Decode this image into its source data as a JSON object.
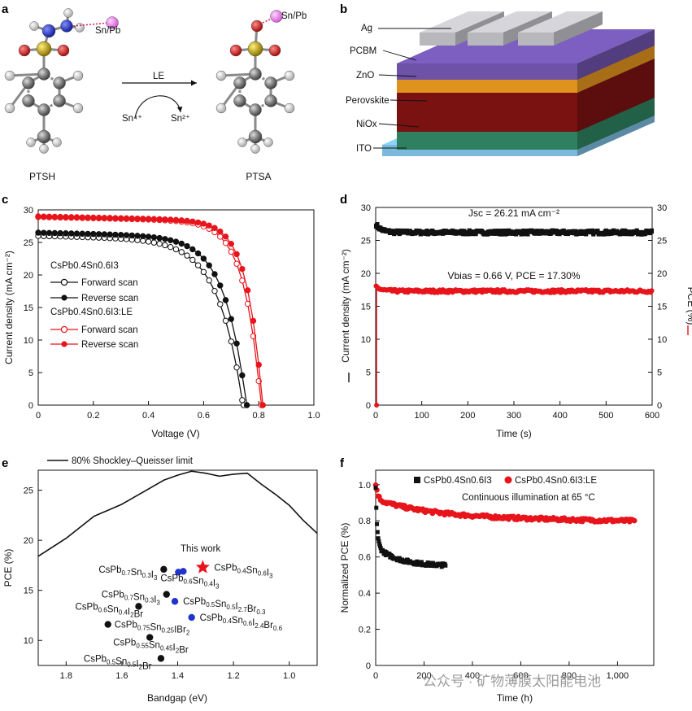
{
  "panels": {
    "a": "a",
    "b": "b",
    "c": "c",
    "d": "d",
    "e": "e",
    "f": "f"
  },
  "panel_a": {
    "left_label": "PTSH",
    "right_label": "PTSA",
    "left_site": "Sn/Pb",
    "right_site": "Sn/Pb",
    "arrow_label": "LE",
    "redox_from": "Sn⁴⁺",
    "redox_to": "Sn²⁺",
    "colors": {
      "carbon": "#7a7a7a",
      "hydrogen": "#e4e4e4",
      "nitrogen": "#2233bb",
      "oxygen": "#d11f1f",
      "sulfur": "#c9a800",
      "metal": "#ee88ee",
      "bond_dash": "#d4145a"
    }
  },
  "panel_b": {
    "layers": [
      "Ag",
      "PCBM",
      "ZnO",
      "Perovskite",
      "NiOx",
      "ITO"
    ],
    "colors": {
      "Ag": "#b8b8bc",
      "PCBM": "#6d52a8",
      "ZnO": "#e0921e",
      "Perovskite": "#7a1212",
      "NiOx": "#2f8060",
      "ITO": "#7ab8dc"
    }
  },
  "chart_data": [
    {
      "id": "c",
      "type": "line",
      "xlabel": "Voltage (V)",
      "ylabel": "Current density (mA cm⁻²)",
      "xlim": [
        0,
        1.0
      ],
      "ylim": [
        0,
        30
      ],
      "xticks": [
        "0",
        "0.2",
        "0.4",
        "0.6",
        "0.8",
        "1.0"
      ],
      "yticks": [
        "0",
        "5",
        "10",
        "15",
        "20",
        "25",
        "30"
      ],
      "legend": {
        "group1": "CsPb0.4Sn0.6I3",
        "group2": "CsPb0.4Sn0.6I3:LE",
        "entries": [
          "Forward scan",
          "Reverse scan",
          "Forward scan",
          "Reverse scan"
        ]
      },
      "series": [
        {
          "name": "Forward scan",
          "group": "CsPb0.4Sn0.6I3",
          "color": "#111111",
          "filled": false,
          "voc": 0.745,
          "jsc": 26.0,
          "n": 0.16
        },
        {
          "name": "Reverse scan",
          "group": "CsPb0.4Sn0.6I3",
          "color": "#111111",
          "filled": true,
          "voc": 0.757,
          "jsc": 26.5,
          "n": 0.14
        },
        {
          "name": "Forward scan",
          "group": "CsPb0.4Sn0.6I3:LE",
          "color": "#e8141c",
          "filled": false,
          "voc": 0.81,
          "jsc": 28.9,
          "n": 0.11
        },
        {
          "name": "Reverse scan",
          "group": "CsPb0.4Sn0.6I3:LE",
          "color": "#e8141c",
          "filled": true,
          "voc": 0.815,
          "jsc": 29.0,
          "n": 0.1
        }
      ]
    },
    {
      "id": "d",
      "type": "line",
      "xlabel": "Time (s)",
      "ylabel_left": "Current density (mA cm⁻²)",
      "ylabel_right": "PCE (%)",
      "xlim": [
        0,
        600
      ],
      "ylim": [
        0,
        30
      ],
      "xticks": [
        "0",
        "100",
        "200",
        "300",
        "400",
        "500",
        "600"
      ],
      "yticks": [
        "0",
        "5",
        "10",
        "15",
        "20",
        "25",
        "30"
      ],
      "annotation_top": "Jsc = 26.21 mA cm⁻²",
      "annotation_mid": "Vbias = 0.66 V, PCE = 17.30%",
      "series": [
        {
          "name": "Current density",
          "color": "#111111",
          "steady": 26.21,
          "start": 27.5
        },
        {
          "name": "PCE",
          "color": "#e8141c",
          "steady": 17.3,
          "start": 18.0
        }
      ]
    },
    {
      "id": "e",
      "type": "scatter",
      "xlabel": "Bandgap (eV)",
      "ylabel": "PCE (%)",
      "xlim": [
        1.9,
        0.9
      ],
      "ylim": [
        7.5,
        27
      ],
      "xticks": [
        "1.8",
        "1.6",
        "1.4",
        "1.2",
        "1.0"
      ],
      "yticks": [
        "10",
        "15",
        "20",
        "25"
      ],
      "sq_label": "80% Shockley–Queisser limit",
      "this_work_label": "This work",
      "sq_curve": [
        [
          1.9,
          18.4
        ],
        [
          1.8,
          20.2
        ],
        [
          1.7,
          22.4
        ],
        [
          1.6,
          23.6
        ],
        [
          1.5,
          25.2
        ],
        [
          1.45,
          26.0
        ],
        [
          1.4,
          26.5
        ],
        [
          1.35,
          26.9
        ],
        [
          1.3,
          26.7
        ],
        [
          1.25,
          26.4
        ],
        [
          1.2,
          26.6
        ],
        [
          1.15,
          26.7
        ],
        [
          1.1,
          25.6
        ],
        [
          1.05,
          24.6
        ],
        [
          1.0,
          23.5
        ],
        [
          0.95,
          22.0
        ],
        [
          0.9,
          20.7
        ]
      ],
      "points": [
        {
          "label": "CsPb0.7Sn0.3I3",
          "x": 1.45,
          "y": 17.1,
          "color": "#111111"
        },
        {
          "label": "CsPb0.6Sn0.4I3",
          "x": 1.38,
          "y": 16.9,
          "color": "#2233cc"
        },
        {
          "label": "CsPb0.7Sn0.3I3",
          "x": 1.44,
          "y": 14.6,
          "color": "#111111"
        },
        {
          "label": "CsPb0.5Sn0.5I2.7Br0.3",
          "x": 1.41,
          "y": 13.9,
          "color": "#2233cc"
        },
        {
          "label": "CsPb0.6Sn0.4I2Br",
          "x": 1.54,
          "y": 13.4,
          "color": "#111111"
        },
        {
          "label": "CsPb0.4Sn0.6I2.4Br0.6",
          "x": 1.35,
          "y": 12.3,
          "color": "#2233cc"
        },
        {
          "label": "CsPb0.75Sn0.25IBr2",
          "x": 1.65,
          "y": 11.6,
          "color": "#111111"
        },
        {
          "label": "CsPb0.55Sn0.45I2Br",
          "x": 1.5,
          "y": 10.3,
          "color": "#111111"
        },
        {
          "label": "CsPb0.5Sn0.5I2Br",
          "x": 1.46,
          "y": 8.2,
          "color": "#111111"
        },
        {
          "label": "CsPb0.4Sn0.6I3",
          "x": 1.31,
          "y": 17.3,
          "color": "#e8141c",
          "marker": "star"
        }
      ]
    },
    {
      "id": "f",
      "type": "scatter",
      "xlabel": "Time (h)",
      "ylabel": "Normalized PCE (%)",
      "xlim": [
        0,
        1150
      ],
      "ylim": [
        0,
        1.08
      ],
      "xticks": [
        "0",
        "200",
        "400",
        "600",
        "800",
        "1,000"
      ],
      "yticks": [
        "0",
        "0.2",
        "0.4",
        "0.6",
        "0.8",
        "1.0"
      ],
      "annotation": "Continuous illumination at 65 °C",
      "series": [
        {
          "name": "CsPb0.4Sn0.6I3",
          "color": "#111111",
          "marker": "square",
          "end_time": 290,
          "end_value": 0.54
        },
        {
          "name": "CsPb0.4Sn0.6I3:LE",
          "color": "#e8141c",
          "marker": "circle",
          "end_time": 1070,
          "end_value": 0.82
        }
      ]
    }
  ],
  "watermark": "公众号 · 矿物薄膜太阳能电池"
}
